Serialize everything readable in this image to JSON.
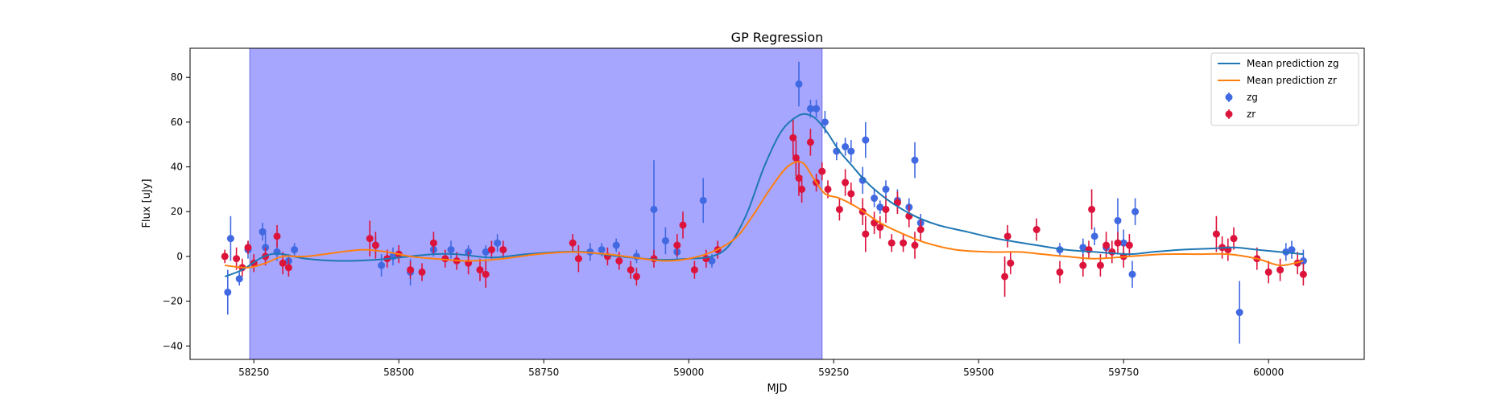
{
  "chart_data": {
    "type": "scatter",
    "title": "GP Regression",
    "xlabel": "MJD",
    "ylabel": "Flux [uJy]",
    "xlim": [
      58140,
      60165
    ],
    "ylim": [
      -46,
      93
    ],
    "xticks": [
      58250,
      58500,
      58750,
      59000,
      59250,
      59500,
      59750,
      60000
    ],
    "yticks": [
      -40,
      -20,
      0,
      20,
      40,
      60,
      80
    ],
    "grid": false,
    "legend_position": "top-right",
    "shaded_region": {
      "x_start": 58243,
      "x_end": 59230,
      "color": "#a6a6ff"
    },
    "legend": [
      {
        "label": "Mean prediction zg",
        "kind": "line",
        "color": "#1f77b4"
      },
      {
        "label": "Mean prediction zr",
        "kind": "line",
        "color": "#ff7f0e"
      },
      {
        "label": "zg",
        "kind": "errorbar",
        "color": "#4169e1"
      },
      {
        "label": "zr",
        "kind": "errorbar",
        "color": "#dc143c"
      }
    ],
    "series": [
      {
        "name": "Mean prediction zg",
        "kind": "line",
        "color": "#1f77b4",
        "x": [
          58200,
          58230,
          58260,
          58280,
          58300,
          58340,
          58400,
          58460,
          58500,
          58560,
          58600,
          58660,
          58720,
          58780,
          58820,
          58880,
          58950,
          59000,
          59040,
          59070,
          59100,
          59130,
          59160,
          59190,
          59210,
          59225,
          59240,
          59260,
          59280,
          59300,
          59320,
          59350,
          59390,
          59430,
          59480,
          59530,
          59600,
          59650,
          59700,
          59760,
          59800,
          59850,
          59900,
          59940,
          59980,
          60020,
          60060
        ],
        "y": [
          -9,
          -6,
          -1,
          1,
          1,
          -1,
          -2,
          -1.5,
          -0.5,
          1,
          1,
          -0.5,
          1,
          2,
          2,
          0,
          -1.5,
          -1,
          0,
          5,
          19,
          40,
          56,
          63,
          63,
          60,
          55,
          47,
          41,
          35,
          30,
          24,
          18,
          14,
          11,
          8,
          5,
          3,
          2,
          1,
          2,
          3,
          3.5,
          4,
          3,
          2,
          1
        ]
      },
      {
        "name": "Mean prediction zr",
        "kind": "line",
        "color": "#ff7f0e",
        "x": [
          58200,
          58240,
          58270,
          58300,
          58340,
          58400,
          58440,
          58480,
          58520,
          58560,
          58620,
          58680,
          58740,
          58800,
          58860,
          58920,
          58960,
          59000,
          59040,
          59080,
          59110,
          59140,
          59170,
          59195,
          59215,
          59235,
          59260,
          59290,
          59330,
          59370,
          59410,
          59460,
          59520,
          59570,
          59610,
          59650,
          59700,
          59760,
          59820,
          59880,
          59930,
          59980,
          60020,
          60060
        ],
        "y": [
          -4,
          -5,
          -3,
          0,
          0,
          2,
          3,
          2,
          0,
          -1,
          -2,
          -1,
          1,
          2,
          1,
          -1,
          -2,
          -1,
          2,
          8,
          18,
          30,
          40,
          42,
          35,
          28,
          26,
          22,
          15,
          10,
          6,
          3,
          2,
          2,
          1,
          0,
          -1,
          0,
          1,
          1,
          1,
          -1,
          -4,
          -2
        ]
      },
      {
        "name": "zg",
        "kind": "errorbar",
        "color": "#4169e1",
        "points": [
          [
            58205,
            -16,
            10
          ],
          [
            58210,
            8,
            10
          ],
          [
            58225,
            -10,
            3
          ],
          [
            58240,
            3,
            4
          ],
          [
            58265,
            11,
            4
          ],
          [
            58270,
            4,
            8
          ],
          [
            58290,
            2,
            4
          ],
          [
            58310,
            -2,
            3
          ],
          [
            58320,
            3,
            3
          ],
          [
            58460,
            5,
            4
          ],
          [
            58470,
            -4,
            5
          ],
          [
            58490,
            0,
            4
          ],
          [
            58520,
            -7,
            6
          ],
          [
            58560,
            3,
            3
          ],
          [
            58590,
            3,
            4
          ],
          [
            58620,
            2,
            3
          ],
          [
            58650,
            2,
            3
          ],
          [
            58670,
            6,
            4
          ],
          [
            58830,
            2,
            4
          ],
          [
            58850,
            3,
            3
          ],
          [
            58875,
            5,
            3
          ],
          [
            58910,
            0,
            3
          ],
          [
            58940,
            21,
            22
          ],
          [
            58960,
            7,
            6
          ],
          [
            58980,
            2,
            3
          ],
          [
            59025,
            25,
            10
          ],
          [
            59040,
            -2,
            3
          ],
          [
            59190,
            77,
            10
          ],
          [
            59210,
            66,
            4
          ],
          [
            59220,
            66,
            4
          ],
          [
            59235,
            60,
            5
          ],
          [
            59255,
            47,
            4
          ],
          [
            59270,
            49,
            4
          ],
          [
            59280,
            47,
            5
          ],
          [
            59300,
            34,
            6
          ],
          [
            59305,
            52,
            8
          ],
          [
            59320,
            26,
            4
          ],
          [
            59330,
            22,
            3
          ],
          [
            59340,
            30,
            4
          ],
          [
            59360,
            25,
            5
          ],
          [
            59380,
            22,
            4
          ],
          [
            59390,
            43,
            8
          ],
          [
            59400,
            15,
            4
          ],
          [
            59640,
            3,
            3
          ],
          [
            59680,
            4,
            4
          ],
          [
            59700,
            9,
            4
          ],
          [
            59720,
            4,
            3
          ],
          [
            59740,
            16,
            10
          ],
          [
            59750,
            6,
            6
          ],
          [
            59765,
            -8,
            6
          ],
          [
            59770,
            20,
            6
          ],
          [
            59950,
            -25,
            14
          ],
          [
            60030,
            2,
            4
          ],
          [
            60040,
            3,
            4
          ],
          [
            60060,
            -2,
            5
          ]
        ]
      },
      {
        "name": "zr",
        "kind": "errorbar",
        "color": "#dc143c",
        "points": [
          [
            58200,
            0,
            3
          ],
          [
            58220,
            -1,
            5
          ],
          [
            58230,
            -5,
            4
          ],
          [
            58240,
            4,
            3
          ],
          [
            58250,
            -3,
            4
          ],
          [
            58270,
            0,
            4
          ],
          [
            58290,
            9,
            5
          ],
          [
            58300,
            -3,
            5
          ],
          [
            58310,
            -5,
            4
          ],
          [
            58450,
            8,
            8
          ],
          [
            58460,
            5,
            6
          ],
          [
            58480,
            -1,
            4
          ],
          [
            58500,
            1,
            4
          ],
          [
            58520,
            -6,
            4
          ],
          [
            58540,
            -7,
            4
          ],
          [
            58560,
            6,
            5
          ],
          [
            58580,
            -1,
            4
          ],
          [
            58600,
            -2,
            4
          ],
          [
            58620,
            -3,
            5
          ],
          [
            58640,
            -6,
            5
          ],
          [
            58650,
            -8,
            6
          ],
          [
            58660,
            3,
            4
          ],
          [
            58680,
            3,
            4
          ],
          [
            58800,
            6,
            4
          ],
          [
            58810,
            -1,
            6
          ],
          [
            58860,
            0,
            4
          ],
          [
            58880,
            -2,
            4
          ],
          [
            58900,
            -6,
            4
          ],
          [
            58910,
            -9,
            4
          ],
          [
            58940,
            -1,
            4
          ],
          [
            58980,
            5,
            5
          ],
          [
            58990,
            14,
            6
          ],
          [
            59010,
            -6,
            4
          ],
          [
            59030,
            -1,
            4
          ],
          [
            59050,
            3,
            4
          ],
          [
            59180,
            53,
            8
          ],
          [
            59185,
            44,
            8
          ],
          [
            59190,
            35,
            8
          ],
          [
            59195,
            30,
            6
          ],
          [
            59210,
            51,
            6
          ],
          [
            59220,
            33,
            4
          ],
          [
            59230,
            38,
            4
          ],
          [
            59240,
            30,
            4
          ],
          [
            59260,
            21,
            5
          ],
          [
            59270,
            33,
            6
          ],
          [
            59280,
            28,
            5
          ],
          [
            59300,
            20,
            6
          ],
          [
            59305,
            10,
            8
          ],
          [
            59320,
            15,
            5
          ],
          [
            59330,
            13,
            5
          ],
          [
            59340,
            21,
            6
          ],
          [
            59350,
            6,
            4
          ],
          [
            59360,
            24,
            5
          ],
          [
            59370,
            6,
            4
          ],
          [
            59380,
            18,
            5
          ],
          [
            59390,
            5,
            6
          ],
          [
            59400,
            12,
            5
          ],
          [
            59545,
            -9,
            9
          ],
          [
            59550,
            9,
            5
          ],
          [
            59555,
            -3,
            5
          ],
          [
            59600,
            12,
            5
          ],
          [
            59640,
            -7,
            5
          ],
          [
            59680,
            -4,
            5
          ],
          [
            59690,
            3,
            4
          ],
          [
            59695,
            21,
            9
          ],
          [
            59710,
            -4,
            5
          ],
          [
            59720,
            5,
            6
          ],
          [
            59730,
            2,
            5
          ],
          [
            59740,
            6,
            5
          ],
          [
            59750,
            0,
            5
          ],
          [
            59760,
            5,
            5
          ],
          [
            59910,
            10,
            8
          ],
          [
            59920,
            4,
            5
          ],
          [
            59930,
            3,
            5
          ],
          [
            59940,
            8,
            5
          ],
          [
            59980,
            -1,
            5
          ],
          [
            60000,
            -7,
            5
          ],
          [
            60020,
            -6,
            5
          ],
          [
            60050,
            -3,
            5
          ],
          [
            60060,
            -8,
            5
          ]
        ]
      }
    ]
  }
}
